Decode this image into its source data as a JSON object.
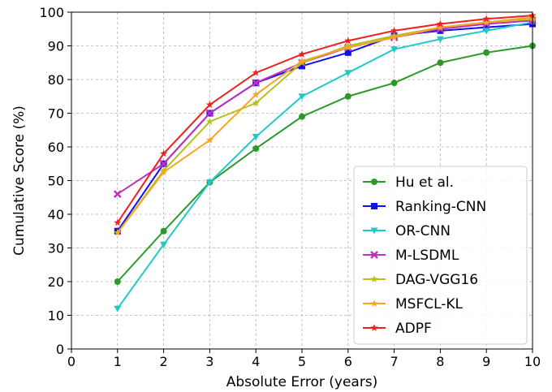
{
  "chart_data": {
    "type": "line",
    "title": "",
    "xlabel": "Absolute Error (years)",
    "ylabel": "Cumulative Score (%)",
    "xlim": [
      0,
      10
    ],
    "ylim": [
      0,
      100
    ],
    "xticks": [
      "0",
      "1",
      "2",
      "3",
      "4",
      "5",
      "6",
      "7",
      "8",
      "9",
      "10"
    ],
    "yticks": [
      "0",
      "10",
      "20",
      "30",
      "40",
      "50",
      "60",
      "70",
      "80",
      "90",
      "100"
    ],
    "grid": true,
    "legend_position": "lower-right",
    "x": [
      1,
      2,
      3,
      4,
      5,
      6,
      7,
      8,
      9,
      10
    ],
    "series": [
      {
        "name": "Hu et al.",
        "color": "#2a9a2a",
        "marker": "circle",
        "values": [
          20,
          35,
          49.5,
          59.5,
          69,
          75,
          79,
          85,
          88,
          90
        ]
      },
      {
        "name": "Ranking-CNN",
        "color": "#1010ee",
        "marker": "square",
        "values": [
          35,
          55,
          70,
          79,
          84,
          88,
          93,
          94.5,
          95.5,
          96.5
        ]
      },
      {
        "name": "OR-CNN",
        "color": "#22c8c8",
        "marker": "triangle-down",
        "values": [
          12,
          31,
          49.5,
          63,
          75,
          82,
          89,
          92,
          94.5,
          97
        ]
      },
      {
        "name": "M-LSDML",
        "color": "#c030c0",
        "marker": "x",
        "values": [
          46,
          55,
          70,
          79,
          85,
          89.5,
          92.5,
          95,
          96.5,
          97.5
        ]
      },
      {
        "name": "DAG-VGG16",
        "color": "#b8c020",
        "marker": "star",
        "values": [
          34.5,
          53,
          67.5,
          73,
          85,
          90,
          93,
          95.5,
          97,
          98
        ]
      },
      {
        "name": "MSFCL-KL",
        "color": "#f5a623",
        "marker": "star",
        "values": [
          34.5,
          52.5,
          62,
          75.5,
          85.5,
          89.5,
          92.5,
          95.5,
          97,
          98.5
        ]
      },
      {
        "name": "ADPF",
        "color": "#ee2020",
        "marker": "star",
        "values": [
          37.5,
          58,
          72.5,
          82,
          87.5,
          91.5,
          94.5,
          96.5,
          98,
          99
        ]
      }
    ]
  }
}
